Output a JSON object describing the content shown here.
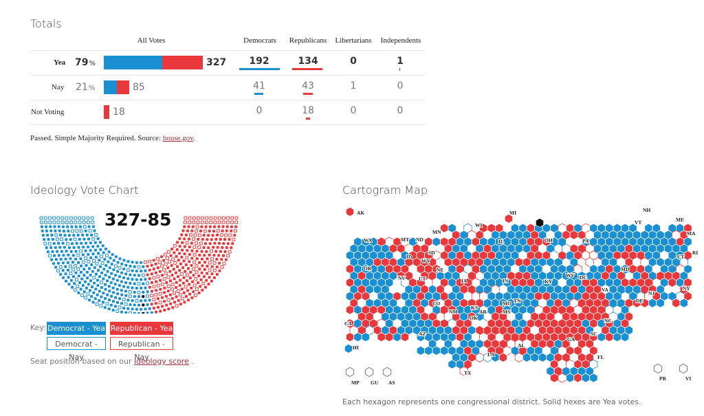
{
  "colors": {
    "dem": "#1a8fd2",
    "rep": "#e8383b",
    "dem_nay": "#c7dff2",
    "rep_nay": "#f5c8c8",
    "black": "#111111"
  },
  "totals": {
    "title": "Totals",
    "headers": {
      "all": "All Votes",
      "dem": "Democrats",
      "rep": "Republicans",
      "lib": "Libertarians",
      "ind": "Independents"
    },
    "rows": [
      {
        "label": "Yea",
        "pct": "79",
        "pct_sign": "%",
        "total": "327",
        "dem": "192",
        "rep": "134",
        "lib": "0",
        "ind": "1"
      },
      {
        "label": "Nay",
        "pct": "21",
        "pct_sign": "%",
        "total": "85",
        "dem": "41",
        "rep": "43",
        "lib": "1",
        "ind": "0"
      },
      {
        "label": "Not Voting",
        "pct": "",
        "pct_sign": "",
        "total": "18",
        "dem": "0",
        "rep": "18",
        "lib": "0",
        "ind": "0"
      }
    ],
    "note": "Passed. Simple Majority Required. Source: ",
    "source_link": "house.gov",
    "note_end": "."
  },
  "ideology": {
    "title": "Ideology Vote Chart",
    "score": "327-85",
    "key_label": "Key:",
    "key": {
      "dem_yea": "Democrat - Yea",
      "rep_yea": "Republican - Yea",
      "dem_nay": "Democrat - Nay",
      "rep_nay": "Republican - Nay"
    },
    "note": "Seat position based on our ",
    "note_link": "ideology score",
    "note_end": " ."
  },
  "cartogram": {
    "title": "Cartogram Map",
    "state_labels": [
      "AK",
      "MI",
      "NH",
      "VT",
      "ME",
      "WI",
      "MN",
      "WA",
      "MT",
      "ND",
      "IL",
      "OH",
      "PA",
      "SD",
      "ID",
      "WY",
      "OR",
      "NE",
      "IN",
      "MD",
      "NV",
      "UT",
      "IA",
      "WV",
      "DC",
      "KY",
      "MA",
      "CT",
      "RI",
      "NY",
      "NJ",
      "DE",
      "VA",
      "CO",
      "MO",
      "TN",
      "CA",
      "NM",
      "KS",
      "AR",
      "MS",
      "NC",
      "OK",
      "AZ",
      "SC",
      "GA",
      "AL",
      "LA",
      "TX",
      "FL",
      "HI",
      "MP",
      "GU",
      "AS",
      "PR",
      "VI"
    ],
    "note": "Each hexagon represents one congressional district. Solid hexes are Yea votes."
  },
  "chart_data": [
    {
      "type": "bar",
      "title": "Totals",
      "categories": [
        "Yea",
        "Nay",
        "Not Voting"
      ],
      "series": [
        {
          "name": "Democrats",
          "values": [
            192,
            41,
            0
          ]
        },
        {
          "name": "Republicans",
          "values": [
            134,
            43,
            18
          ]
        },
        {
          "name": "Libertarians",
          "values": [
            0,
            1,
            0
          ]
        },
        {
          "name": "Independents",
          "values": [
            1,
            0,
            0
          ]
        }
      ],
      "totals": [
        327,
        85,
        18
      ],
      "percent": [
        79,
        21,
        null
      ]
    },
    {
      "type": "scatter",
      "title": "Ideology Vote Chart",
      "counts": {
        "dem_yea": 192,
        "rep_yea": 134,
        "dem_nay": 41,
        "rep_nay": 43,
        "other": 2,
        "not_voting": 18
      }
    }
  ]
}
